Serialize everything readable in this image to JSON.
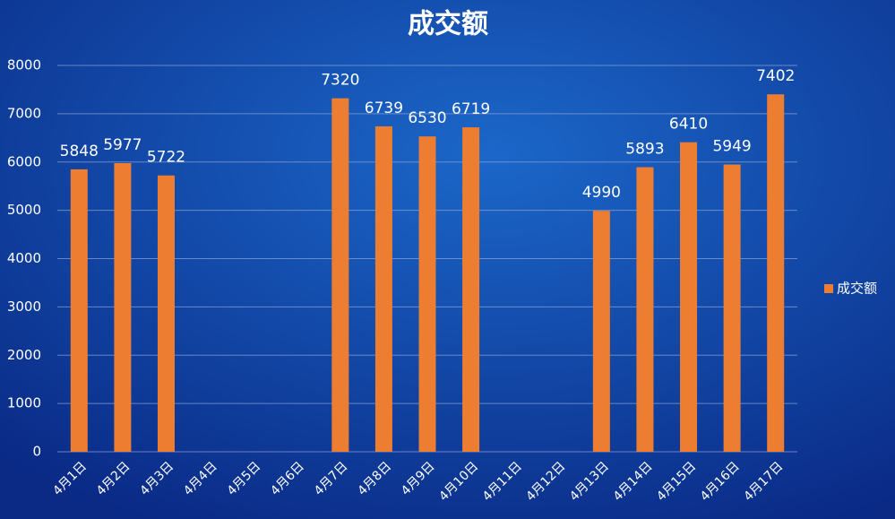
{
  "chart_data": {
    "type": "bar",
    "title": "成交额",
    "categories": [
      "4月1日",
      "4月2日",
      "4月3日",
      "4月4日",
      "4月5日",
      "4月6日",
      "4月7日",
      "4月8日",
      "4月9日",
      "4月10日",
      "4月11日",
      "4月12日",
      "4月13日",
      "4月14日",
      "4月15日",
      "4月16日",
      "4月17日"
    ],
    "series": [
      {
        "name": "成交额",
        "color": "#ed7d31",
        "values": [
          5848,
          5977,
          5722,
          null,
          null,
          null,
          7320,
          6739,
          6530,
          6719,
          null,
          null,
          4990,
          5893,
          6410,
          5949,
          7402
        ]
      }
    ],
    "ylim": [
      0,
      8000
    ],
    "yticks": [
      0,
      1000,
      2000,
      3000,
      4000,
      5000,
      6000,
      7000,
      8000
    ],
    "grid": true,
    "legend": "right"
  }
}
